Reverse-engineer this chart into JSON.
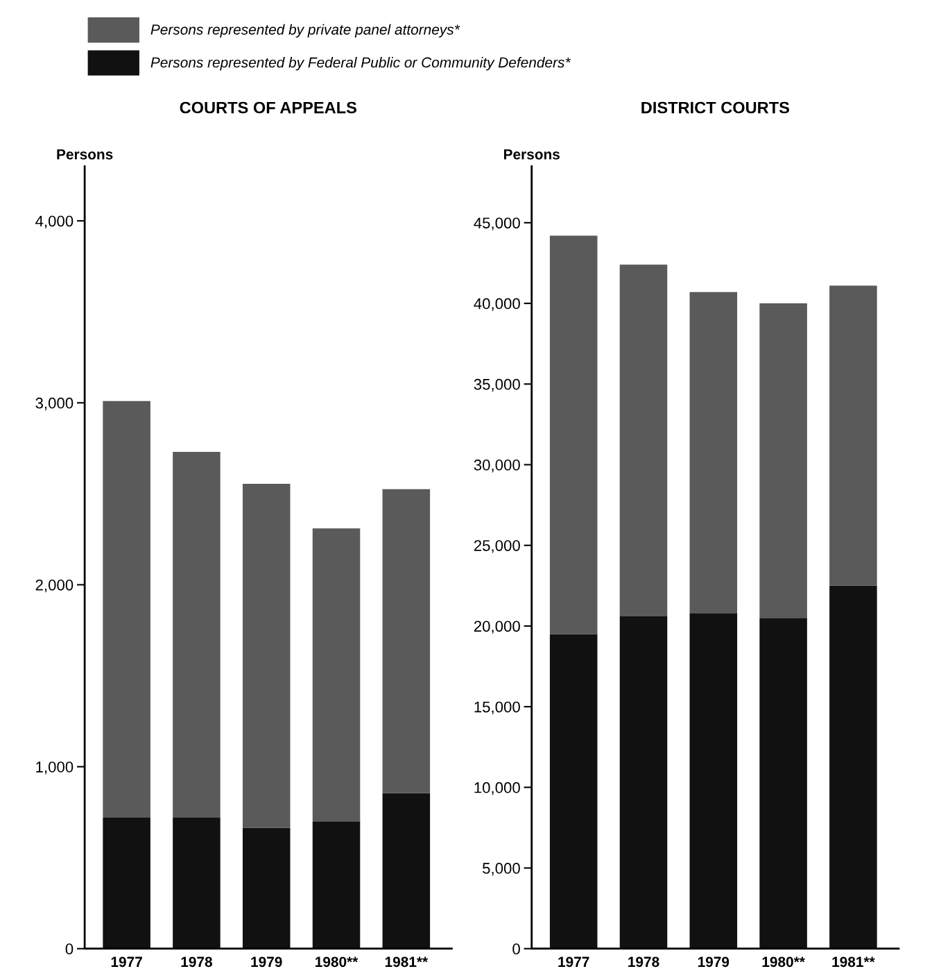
{
  "chart_data": [
    {
      "type": "bar",
      "title": "COURTS OF APPEALS",
      "ylabel": "Persons",
      "categories": [
        "1977",
        "1978",
        "1979",
        "1980**",
        "1981**"
      ],
      "stacked": true,
      "legend": "top",
      "grid": false,
      "series": [
        {
          "name": "Persons represented by Federal Public or Community Defenders*",
          "color": "#111111",
          "values": [
            720,
            720,
            665,
            700,
            855
          ]
        },
        {
          "name": "Persons represented by private panel attorneys*",
          "color": "#5a5a5a",
          "values": [
            2290,
            2010,
            1890,
            1610,
            1670
          ]
        }
      ],
      "ylim": [
        0,
        4300
      ],
      "yticks": [
        {
          "value": 0,
          "label": "0"
        },
        {
          "value": 1000,
          "label": "1,000"
        },
        {
          "value": 2000,
          "label": "2,000"
        },
        {
          "value": 3000,
          "label": "3,000"
        },
        {
          "value": 4000,
          "label": "4,000"
        }
      ]
    },
    {
      "type": "bar",
      "title": "DISTRICT COURTS",
      "ylabel": "Persons",
      "categories": [
        "1977",
        "1978",
        "1979",
        "1980**",
        "1981**"
      ],
      "stacked": true,
      "grid": false,
      "series": [
        {
          "color": "#111111",
          "values": [
            19500,
            20600,
            20800,
            20500,
            22500
          ]
        },
        {
          "color": "#5a5a5a",
          "values": [
            24700,
            21800,
            19900,
            19500,
            18600
          ]
        }
      ],
      "ylim": [
        0,
        48500
      ],
      "yticks": [
        {
          "value": 0,
          "label": "0"
        },
        {
          "value": 5000,
          "label": "5,000"
        },
        {
          "value": 10000,
          "label": "10,000"
        },
        {
          "value": 15000,
          "label": "15,000"
        },
        {
          "value": 20000,
          "label": "20,000"
        },
        {
          "value": 25000,
          "label": "25,000"
        },
        {
          "value": 30000,
          "label": "30,000"
        },
        {
          "value": 35000,
          "label": "35,000"
        },
        {
          "value": 40000,
          "label": "40,000"
        },
        {
          "value": 45000,
          "label": "45,000"
        }
      ]
    }
  ]
}
